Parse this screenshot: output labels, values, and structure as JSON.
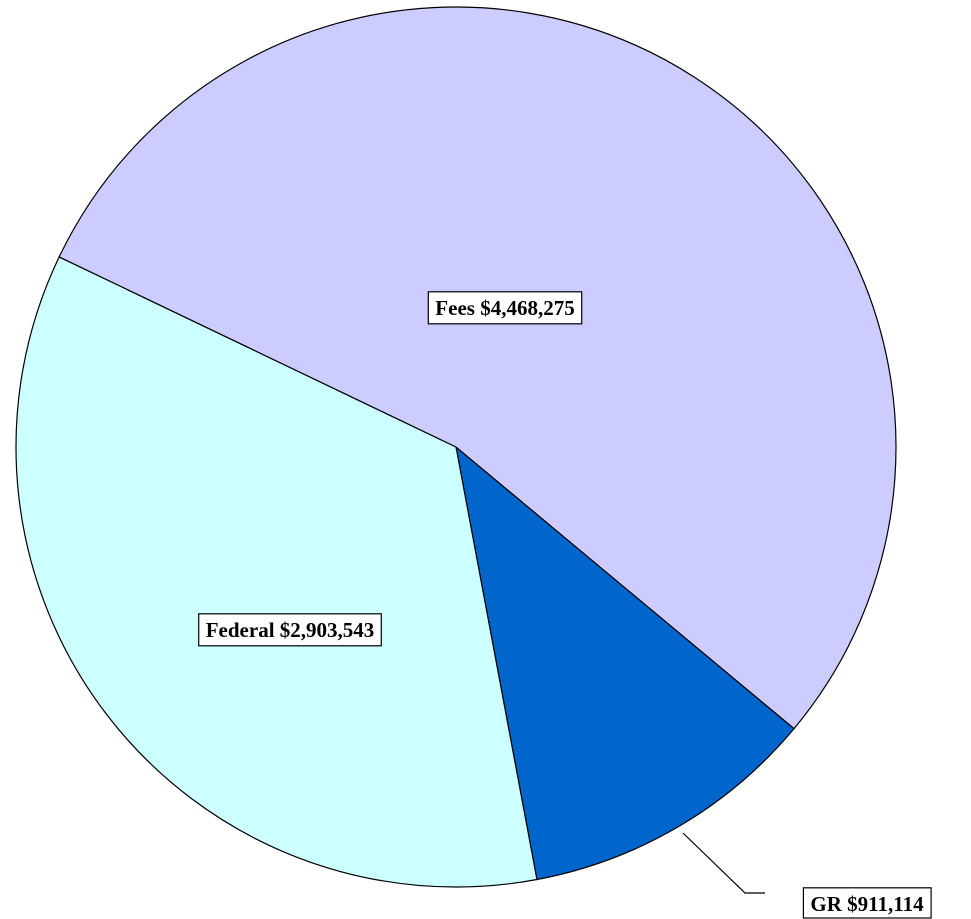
{
  "chart_data": {
    "type": "pie",
    "categories": [
      "GR",
      "Federal",
      "Fees"
    ],
    "values": [
      911114,
      2903543,
      4468275
    ],
    "value_labels": [
      "$911,114",
      "$2,903,543",
      "$4,468,275"
    ],
    "colors": [
      "#0066cc",
      "#ccffff",
      "#ccccff"
    ]
  }
}
